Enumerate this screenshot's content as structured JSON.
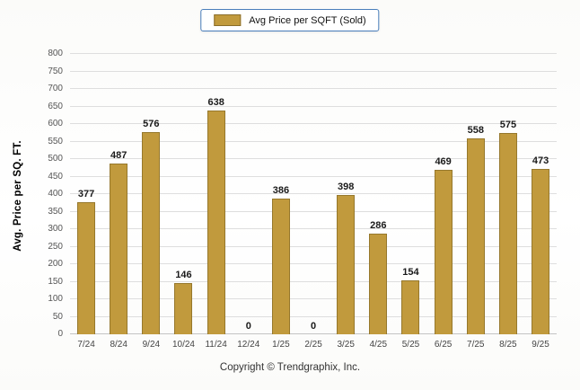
{
  "legend": {
    "label": "Avg Price per SQFT (Sold)"
  },
  "footer": {
    "text": "Copyright © Trendgraphix, Inc."
  },
  "chart_data": {
    "type": "bar",
    "title": "",
    "categories": [
      "7/24",
      "8/24",
      "9/24",
      "10/24",
      "11/24",
      "12/24",
      "1/25",
      "2/25",
      "3/25",
      "4/25",
      "5/25",
      "6/25",
      "7/25",
      "8/25",
      "9/25"
    ],
    "values": [
      377,
      487,
      576,
      146,
      638,
      0,
      386,
      0,
      398,
      286,
      154,
      469,
      558,
      575,
      473
    ],
    "series_name": "Avg Price per SQFT (Sold)",
    "xlabel": "",
    "ylabel": "Avg. Price per SQ. FT.",
    "ylim": [
      0,
      800
    ],
    "ytick_step": 50,
    "grid": true,
    "legend_position": "top",
    "bar_color": "#C19A3D",
    "bar_border_color": "#96782C",
    "value_label_color": "#1a1a1a"
  }
}
